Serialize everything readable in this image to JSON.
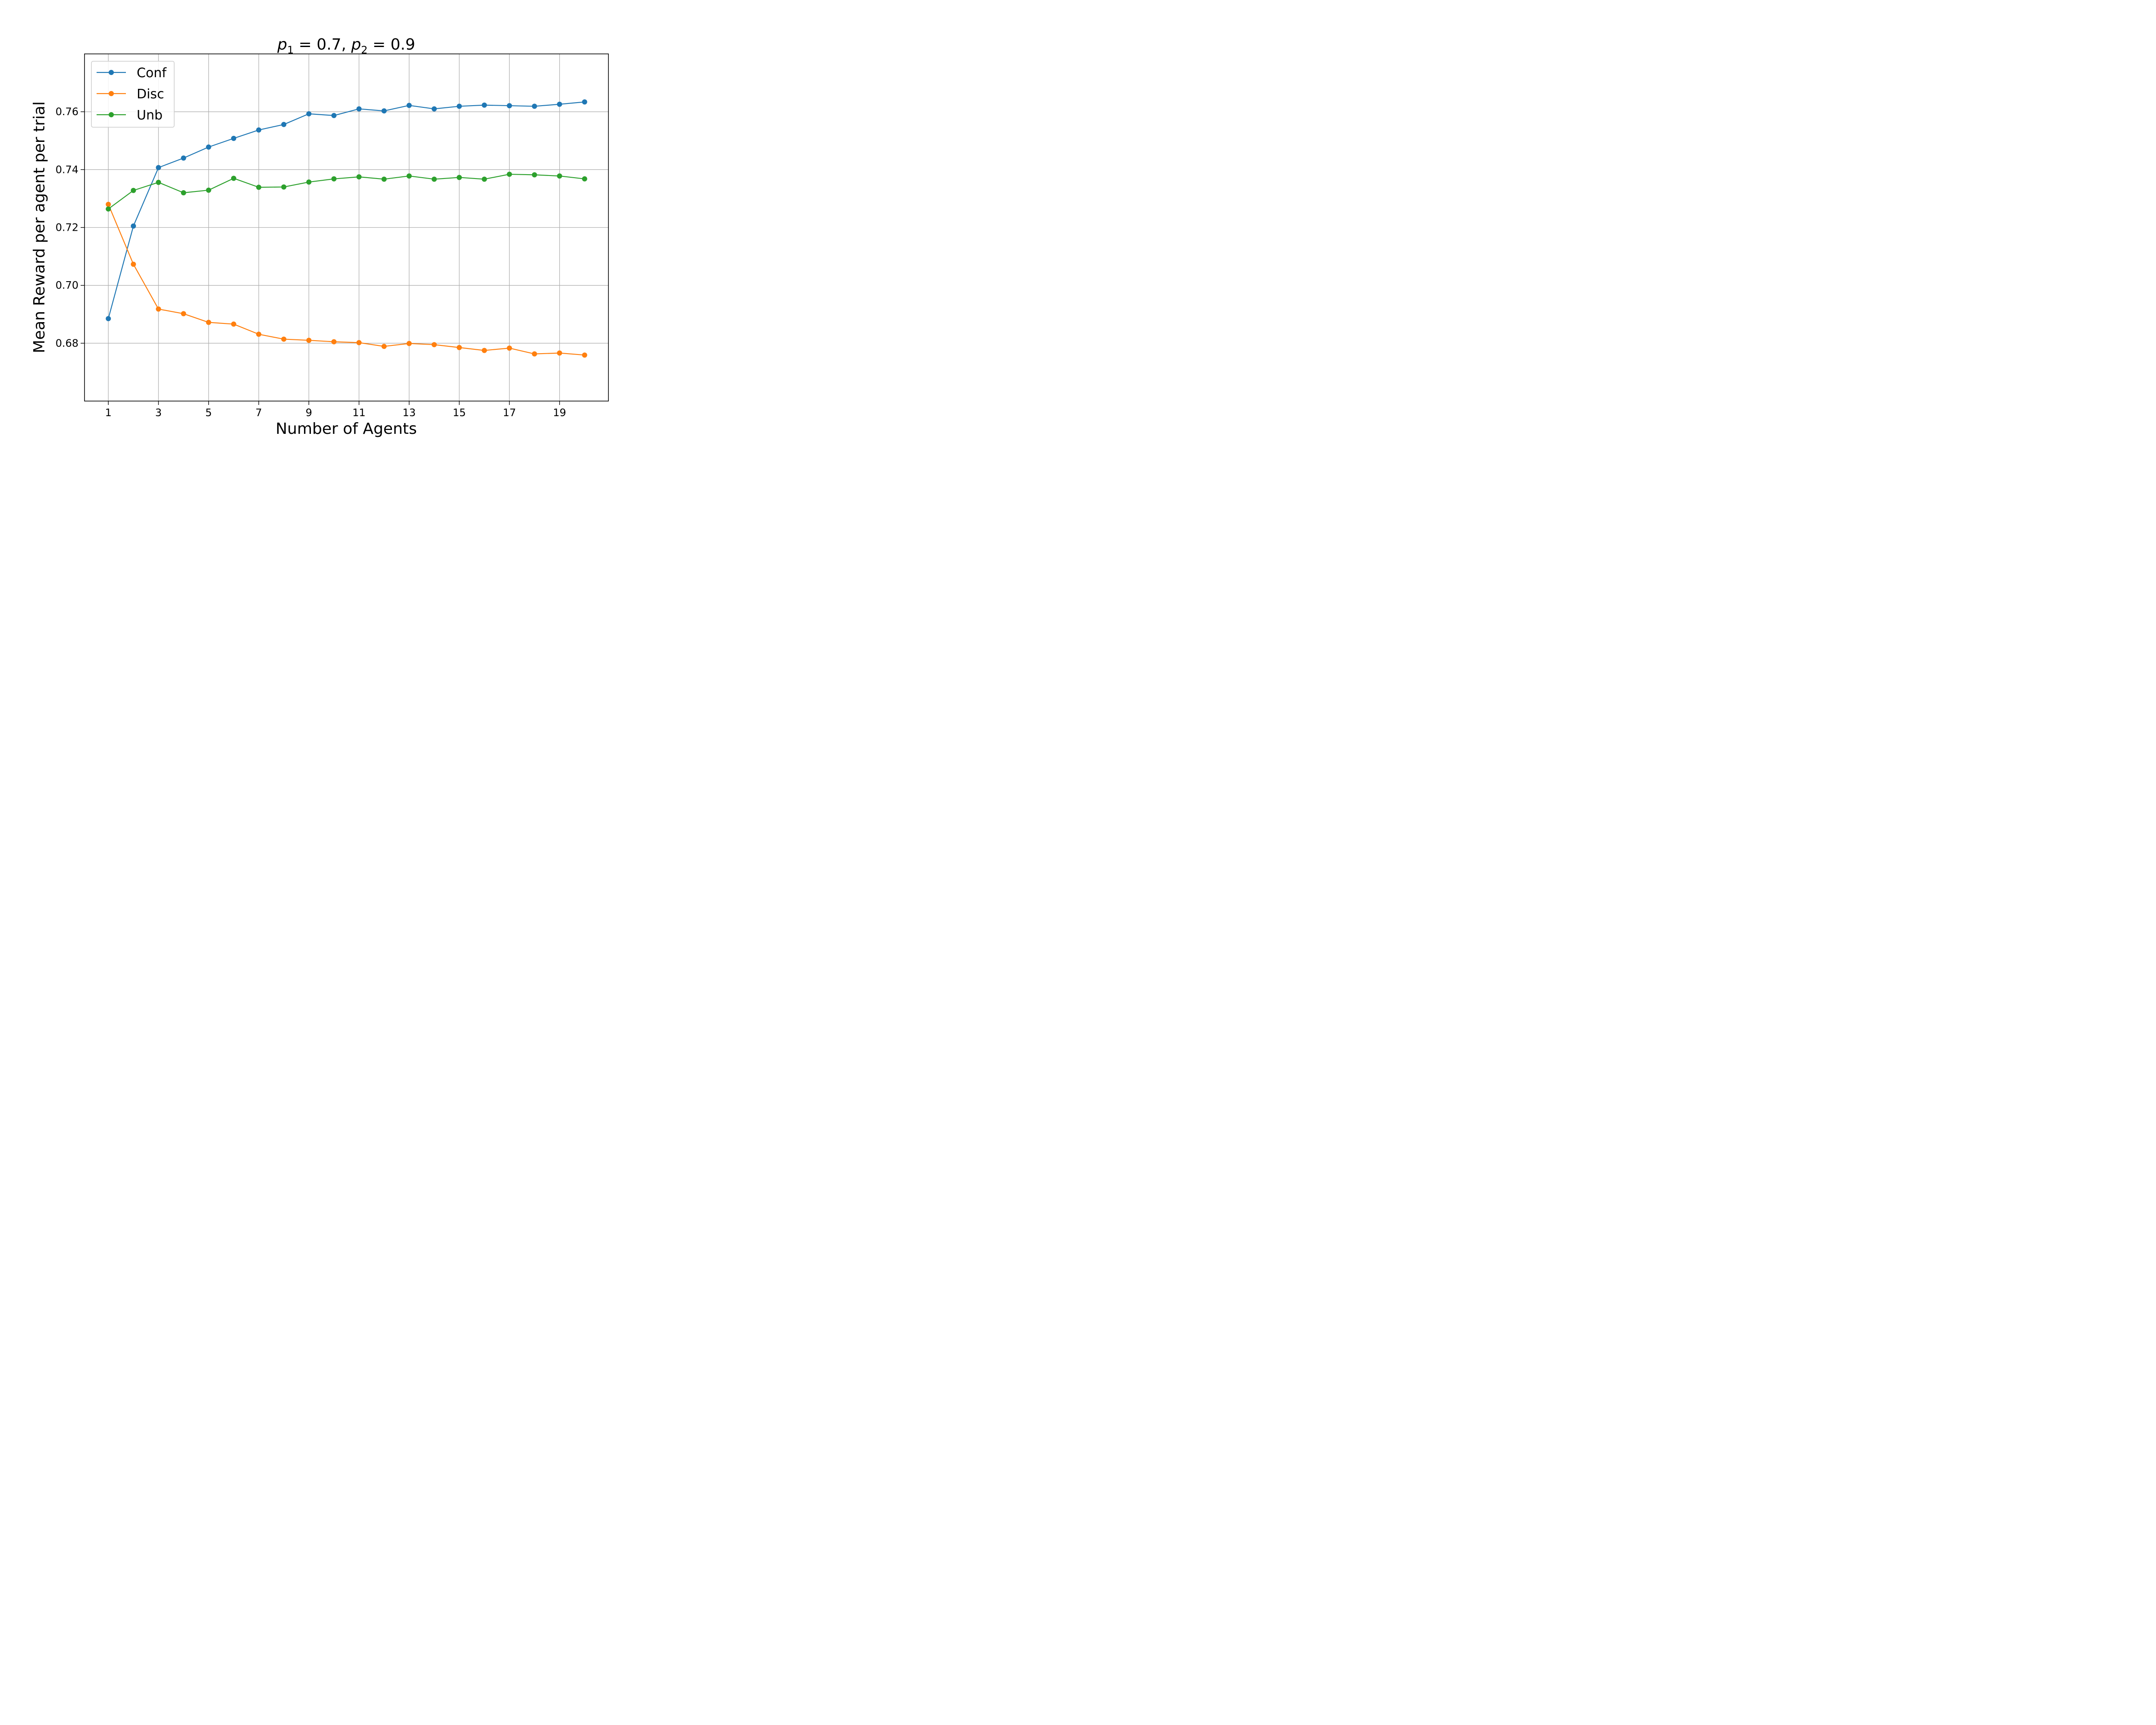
{
  "chart_data": {
    "type": "line",
    "title": {
      "p1_symbol": "p",
      "p1_sub": "1",
      "p1_text": " = 0.7, ",
      "p2_symbol": "p",
      "p2_sub": "2",
      "p2_text": " = 0.9"
    },
    "xlabel": "Number of Agents",
    "ylabel": "Mean Reward per agent per trial",
    "x": [
      1,
      2,
      3,
      4,
      5,
      6,
      7,
      8,
      9,
      10,
      11,
      12,
      13,
      14,
      15,
      16,
      17,
      18,
      19,
      20
    ],
    "xticks": [
      1,
      3,
      5,
      7,
      9,
      11,
      13,
      15,
      17,
      19
    ],
    "xticklabels": [
      "1",
      "3",
      "5",
      "7",
      "9",
      "11",
      "13",
      "15",
      "17",
      "19"
    ],
    "yticks": [
      0.68,
      0.7,
      0.72,
      0.74,
      0.76
    ],
    "yticklabels": [
      "0.68",
      "0.70",
      "0.72",
      "0.74",
      "0.76"
    ],
    "xlim": [
      0.05,
      20.95
    ],
    "ylim": [
      0.66,
      0.78
    ],
    "grid": true,
    "legend_position": "upper-left",
    "series": [
      {
        "name": "Conf",
        "color": "#1f77b4",
        "values": [
          0.6885,
          0.7205,
          0.7407,
          0.744,
          0.7478,
          0.7508,
          0.7537,
          0.7556,
          0.7593,
          0.7587,
          0.761,
          0.7603,
          0.7622,
          0.761,
          0.7619,
          0.7623,
          0.7621,
          0.7619,
          0.7626,
          0.7634
        ]
      },
      {
        "name": "Disc",
        "color": "#ff7f0e",
        "values": [
          0.728,
          0.7073,
          0.6918,
          0.6902,
          0.6872,
          0.6866,
          0.6831,
          0.6814,
          0.681,
          0.6805,
          0.6802,
          0.6789,
          0.6799,
          0.6795,
          0.6785,
          0.6775,
          0.6783,
          0.6763,
          0.6766,
          0.6759
        ]
      },
      {
        "name": "Unb",
        "color": "#2ca02c",
        "values": [
          0.7264,
          0.7328,
          0.7356,
          0.732,
          0.7329,
          0.737,
          0.7339,
          0.734,
          0.7357,
          0.7368,
          0.7375,
          0.7367,
          0.7378,
          0.7367,
          0.7373,
          0.7367,
          0.7384,
          0.7382,
          0.7378,
          0.7368
        ]
      }
    ]
  }
}
